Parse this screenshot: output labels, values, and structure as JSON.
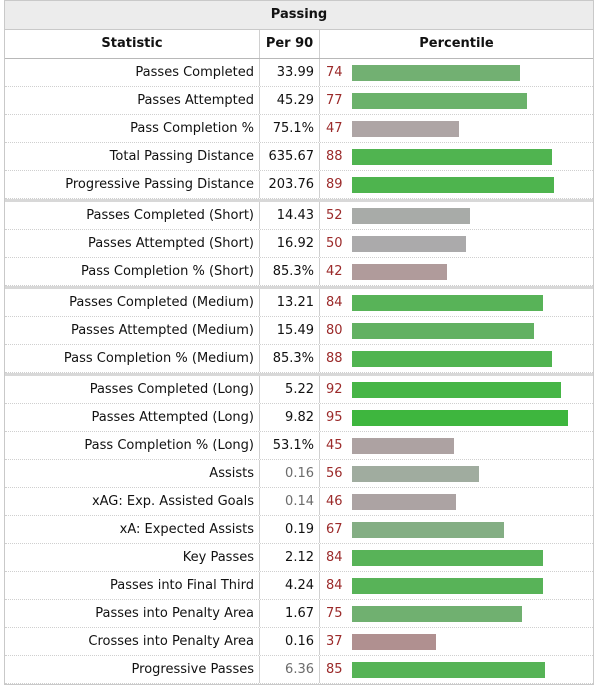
{
  "table": {
    "title": "Passing",
    "headers": {
      "statistic": "Statistic",
      "per90": "Per 90",
      "percentile": "Percentile"
    },
    "rows": [
      {
        "stat": "Passes Completed",
        "per90": "33.99",
        "pct": 74,
        "color": "#72b072"
      },
      {
        "stat": "Passes Attempted",
        "per90": "45.29",
        "pct": 77,
        "color": "#6bb26b"
      },
      {
        "stat": "Pass Completion %",
        "per90": "75.1%",
        "pct": 47,
        "color": "#aea5a5"
      },
      {
        "stat": "Total Passing Distance",
        "per90": "635.67",
        "pct": 88,
        "color": "#50b450"
      },
      {
        "stat": "Progressive Passing Distance",
        "per90": "203.76",
        "pct": 89,
        "color": "#4eb44e"
      },
      {
        "stat": "Passes Completed (Short)",
        "per90": "14.43",
        "pct": 52,
        "color": "#a8aba8",
        "sep": true
      },
      {
        "stat": "Passes Attempted (Short)",
        "per90": "16.92",
        "pct": 50,
        "color": "#abaaab"
      },
      {
        "stat": "Pass Completion % (Short)",
        "per90": "85.3%",
        "pct": 42,
        "color": "#b09b9b"
      },
      {
        "stat": "Passes Completed (Medium)",
        "per90": "13.21",
        "pct": 84,
        "color": "#58b358",
        "sep": true
      },
      {
        "stat": "Passes Attempted (Medium)",
        "per90": "15.49",
        "pct": 80,
        "color": "#62b162"
      },
      {
        "stat": "Pass Completion % (Medium)",
        "per90": "85.3%",
        "pct": 88,
        "color": "#50b450"
      },
      {
        "stat": "Passes Completed (Long)",
        "per90": "5.22",
        "pct": 92,
        "color": "#46b546",
        "sep": true
      },
      {
        "stat": "Passes Attempted (Long)",
        "per90": "9.82",
        "pct": 95,
        "color": "#3eb63e"
      },
      {
        "stat": "Pass Completion % (Long)",
        "per90": "53.1%",
        "pct": 45,
        "color": "#ada2a2"
      },
      {
        "stat": "Assists",
        "per90": "0.16",
        "pct": 56,
        "color": "#a0ac9f",
        "muted": true
      },
      {
        "stat": "xAG: Exp. Assisted Goals",
        "per90": "0.14",
        "pct": 46,
        "color": "#aca3a3",
        "muted": true
      },
      {
        "stat": "xA: Expected Assists",
        "per90": "0.19",
        "pct": 67,
        "color": "#84ae84"
      },
      {
        "stat": "Key Passes",
        "per90": "2.12",
        "pct": 84,
        "color": "#58b358"
      },
      {
        "stat": "Passes into Final Third",
        "per90": "4.24",
        "pct": 84,
        "color": "#58b358"
      },
      {
        "stat": "Passes into Penalty Area",
        "per90": "1.67",
        "pct": 75,
        "color": "#70b070"
      },
      {
        "stat": "Crosses into Penalty Area",
        "per90": "0.16",
        "pct": 37,
        "color": "#b09090"
      },
      {
        "stat": "Progressive Passes",
        "per90": "6.36",
        "pct": 85,
        "color": "#56b356",
        "muted": true
      }
    ]
  }
}
